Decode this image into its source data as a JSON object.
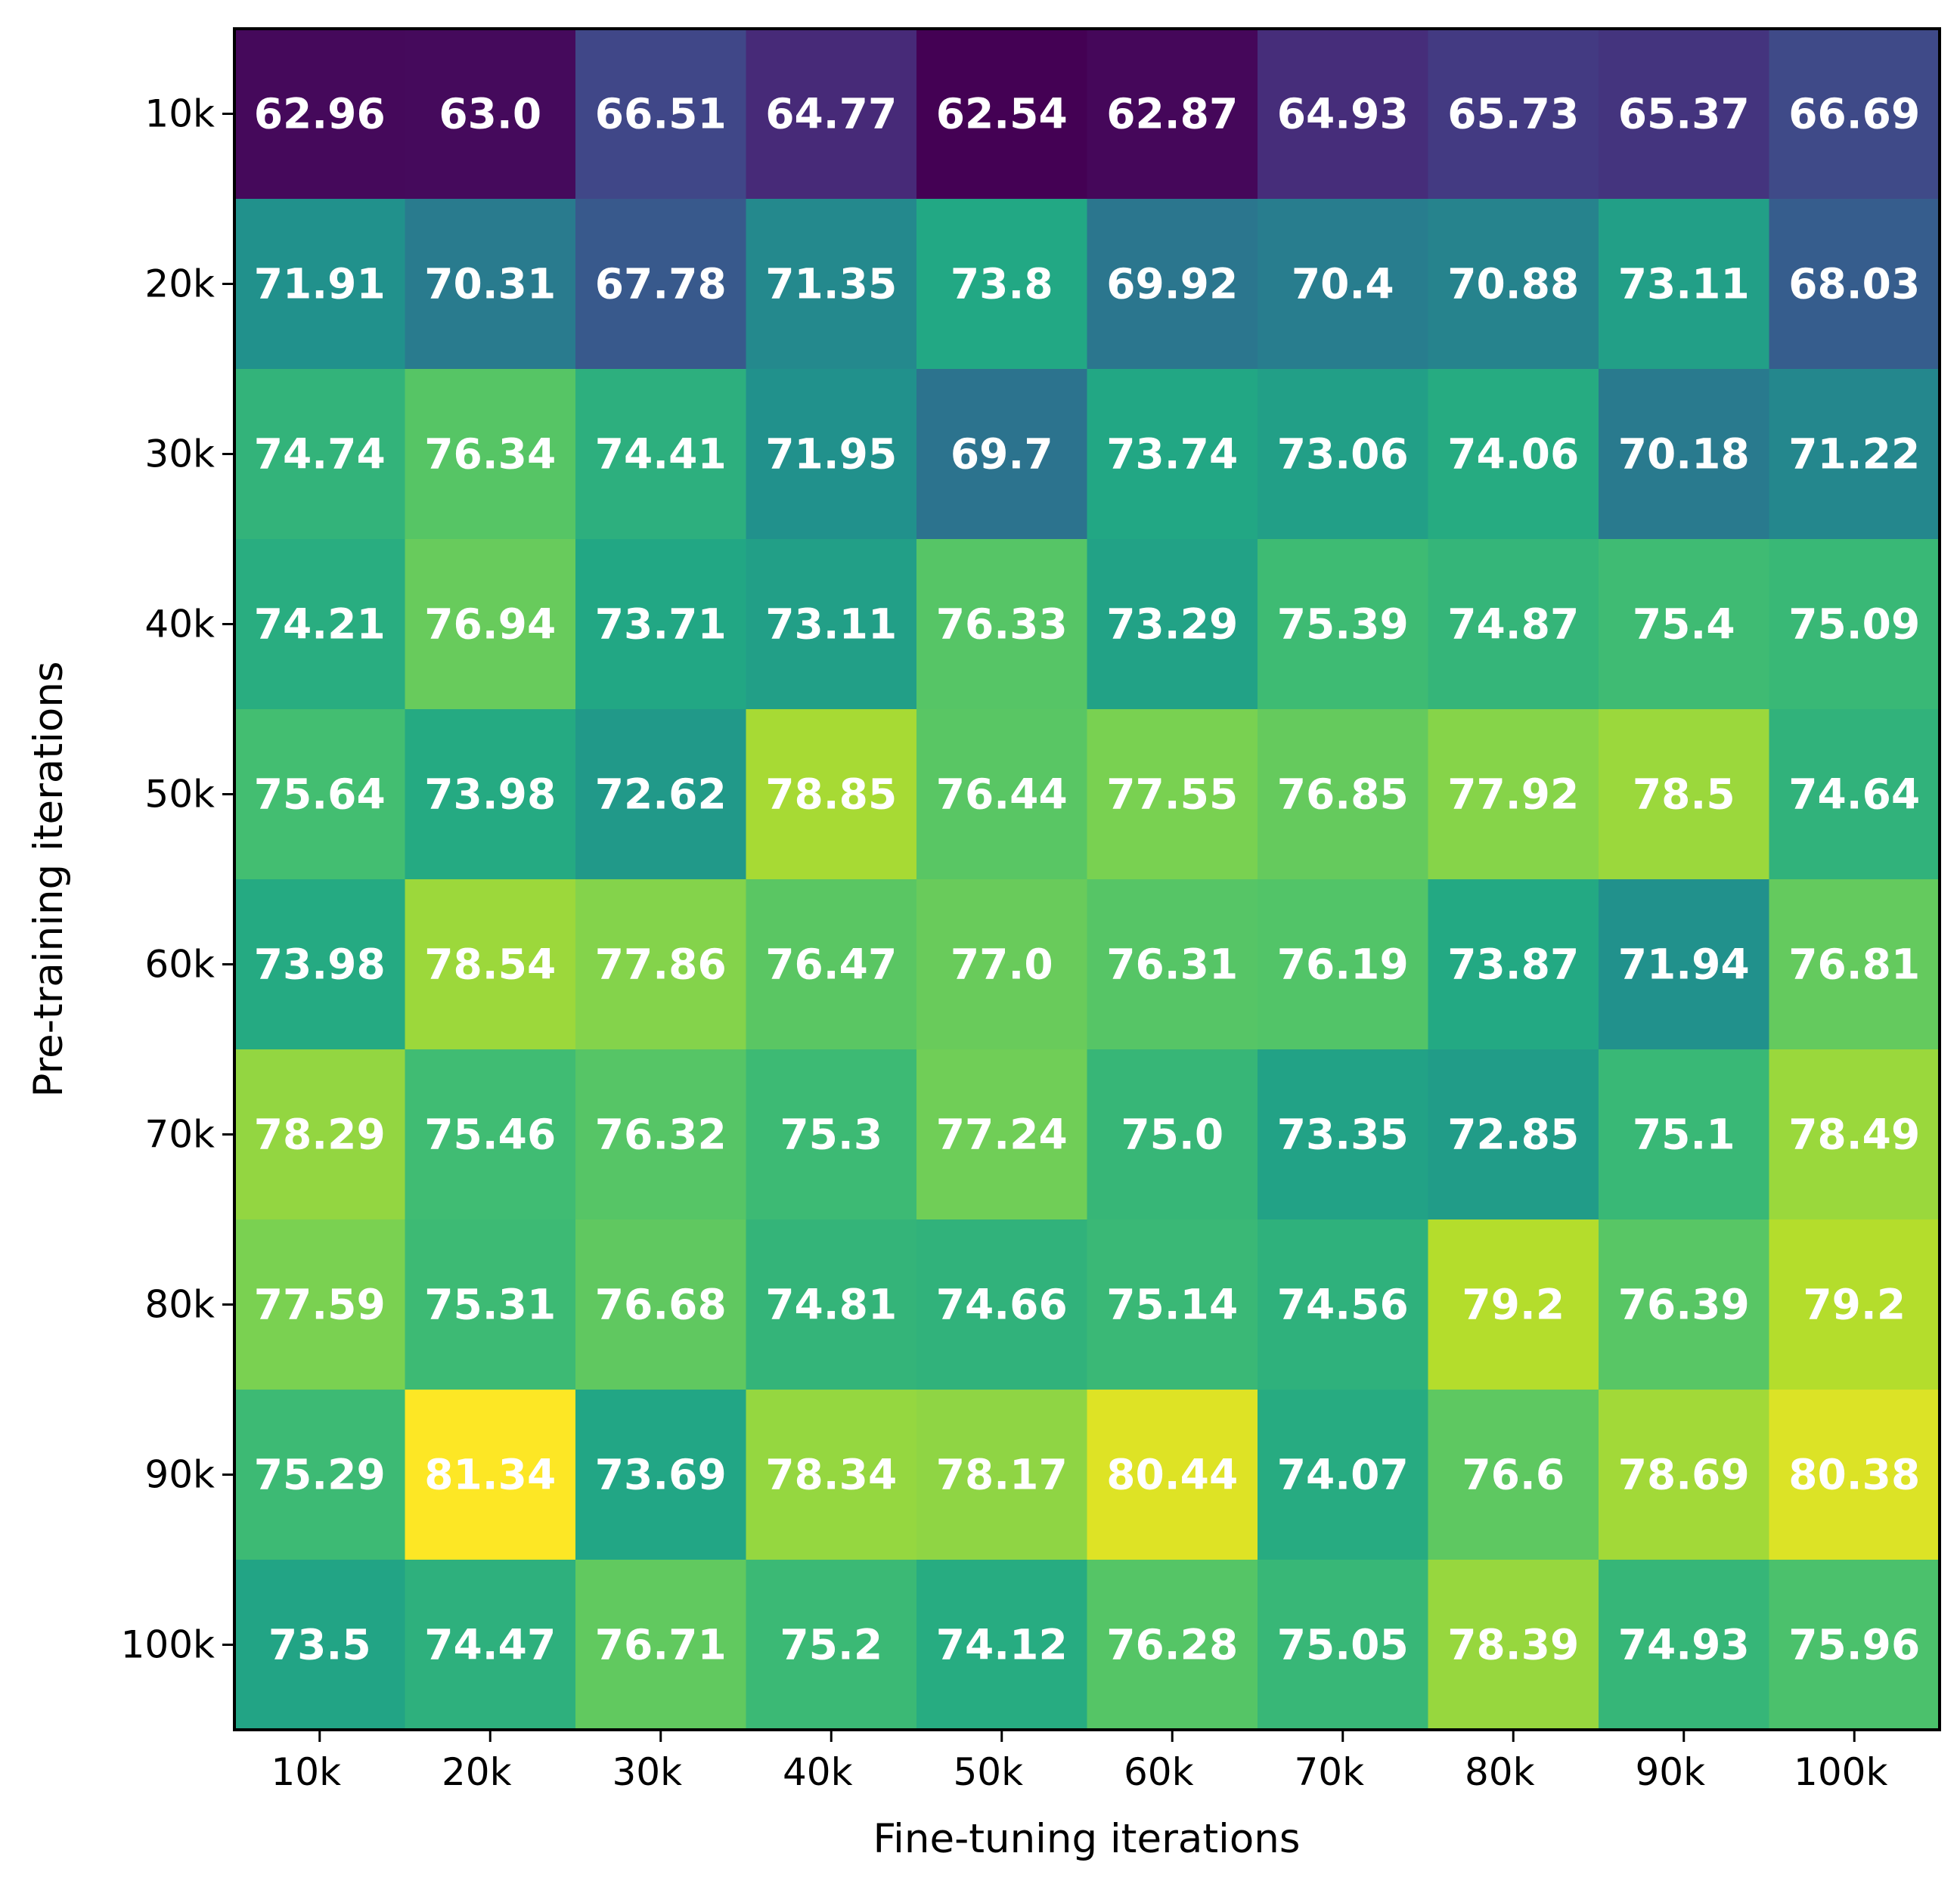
{
  "chart_data": {
    "type": "heatmap",
    "title": "",
    "xlabel": "Fine-tuning iterations",
    "ylabel": "Pre-training iterations",
    "x_categories": [
      "10k",
      "20k",
      "30k",
      "40k",
      "50k",
      "60k",
      "70k",
      "80k",
      "90k",
      "100k"
    ],
    "y_categories": [
      "10k",
      "20k",
      "30k",
      "40k",
      "50k",
      "60k",
      "70k",
      "80k",
      "90k",
      "100k"
    ],
    "colormap": "viridis",
    "vmin": 62.54,
    "vmax": 81.34,
    "values": [
      [
        62.96,
        63.0,
        66.51,
        64.77,
        62.54,
        62.87,
        64.93,
        65.73,
        65.37,
        66.69
      ],
      [
        71.91,
        70.31,
        67.78,
        71.35,
        73.8,
        69.92,
        70.4,
        70.88,
        73.11,
        68.03
      ],
      [
        74.74,
        76.34,
        74.41,
        71.95,
        69.7,
        73.74,
        73.06,
        74.06,
        70.18,
        71.22
      ],
      [
        74.21,
        76.94,
        73.71,
        73.11,
        76.33,
        73.29,
        75.39,
        74.87,
        75.4,
        75.09
      ],
      [
        75.64,
        73.98,
        72.62,
        78.85,
        76.44,
        77.55,
        76.85,
        77.92,
        78.5,
        74.64
      ],
      [
        73.98,
        78.54,
        77.86,
        76.47,
        77.0,
        76.31,
        76.19,
        73.87,
        71.94,
        76.81
      ],
      [
        78.29,
        75.46,
        76.32,
        75.3,
        77.24,
        75.0,
        73.35,
        72.85,
        75.1,
        78.49
      ],
      [
        77.59,
        75.31,
        76.68,
        74.81,
        74.66,
        75.14,
        74.56,
        79.2,
        76.39,
        79.2
      ],
      [
        75.29,
        81.34,
        73.69,
        78.34,
        78.17,
        80.44,
        74.07,
        76.6,
        78.69,
        80.38
      ],
      [
        73.5,
        74.47,
        76.71,
        75.2,
        74.12,
        76.28,
        75.05,
        78.39,
        74.93,
        75.96
      ]
    ],
    "value_labels": [
      [
        "62.96",
        "63.0",
        "66.51",
        "64.77",
        "62.54",
        "62.87",
        "64.93",
        "65.73",
        "65.37",
        "66.69"
      ],
      [
        "71.91",
        "70.31",
        "67.78",
        "71.35",
        "73.8",
        "69.92",
        "70.4",
        "70.88",
        "73.11",
        "68.03"
      ],
      [
        "74.74",
        "76.34",
        "74.41",
        "71.95",
        "69.7",
        "73.74",
        "73.06",
        "74.06",
        "70.18",
        "71.22"
      ],
      [
        "74.21",
        "76.94",
        "73.71",
        "73.11",
        "76.33",
        "73.29",
        "75.39",
        "74.87",
        "75.4",
        "75.09"
      ],
      [
        "75.64",
        "73.98",
        "72.62",
        "78.85",
        "76.44",
        "77.55",
        "76.85",
        "77.92",
        "78.5",
        "74.64"
      ],
      [
        "73.98",
        "78.54",
        "77.86",
        "76.47",
        "77.0",
        "76.31",
        "76.19",
        "73.87",
        "71.94",
        "76.81"
      ],
      [
        "78.29",
        "75.46",
        "76.32",
        "75.3",
        "77.24",
        "75.0",
        "73.35",
        "72.85",
        "75.1",
        "78.49"
      ],
      [
        "77.59",
        "75.31",
        "76.68",
        "74.81",
        "74.66",
        "75.14",
        "74.56",
        "79.2",
        "76.39",
        "79.2"
      ],
      [
        "75.29",
        "81.34",
        "73.69",
        "78.34",
        "78.17",
        "80.44",
        "74.07",
        "76.6",
        "78.69",
        "80.38"
      ],
      [
        "73.5",
        "74.47",
        "76.71",
        "75.2",
        "74.12",
        "76.28",
        "75.05",
        "78.39",
        "74.93",
        "75.96"
      ]
    ],
    "grid": false,
    "legend": "none"
  }
}
